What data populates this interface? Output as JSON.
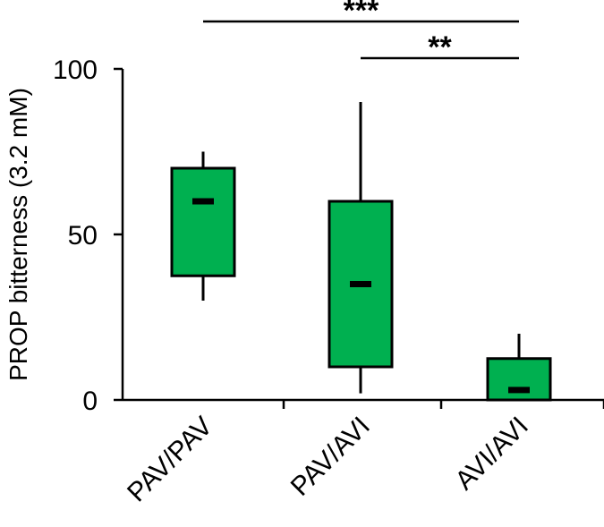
{
  "chart_data": {
    "type": "box",
    "ylabel": "PROP  bitterness (3.2 mM)",
    "ylim": [
      0,
      100
    ],
    "yticks": [
      0,
      50,
      100
    ],
    "categories": [
      "PAV/PAV",
      "PAV/AVI",
      "AVI/AVI"
    ],
    "boxes": [
      {
        "category": "PAV/PAV",
        "whisker_low": 30,
        "q1": 37.5,
        "median": 60,
        "q3": 70,
        "whisker_high": 75
      },
      {
        "category": "PAV/AVI",
        "whisker_low": 2,
        "q1": 10,
        "median": 35,
        "q3": 60,
        "whisker_high": 90
      },
      {
        "category": "AVI/AVI",
        "whisker_low": 0,
        "q1": 0,
        "median": 3,
        "q3": 12.5,
        "whisker_high": 20
      }
    ],
    "box_color": "#00b050",
    "significance": [
      {
        "from": "PAV/PAV",
        "to": "AVI/AVI",
        "label": "***"
      },
      {
        "from": "PAV/AVI",
        "to": "AVI/AVI",
        "label": "**"
      }
    ]
  }
}
